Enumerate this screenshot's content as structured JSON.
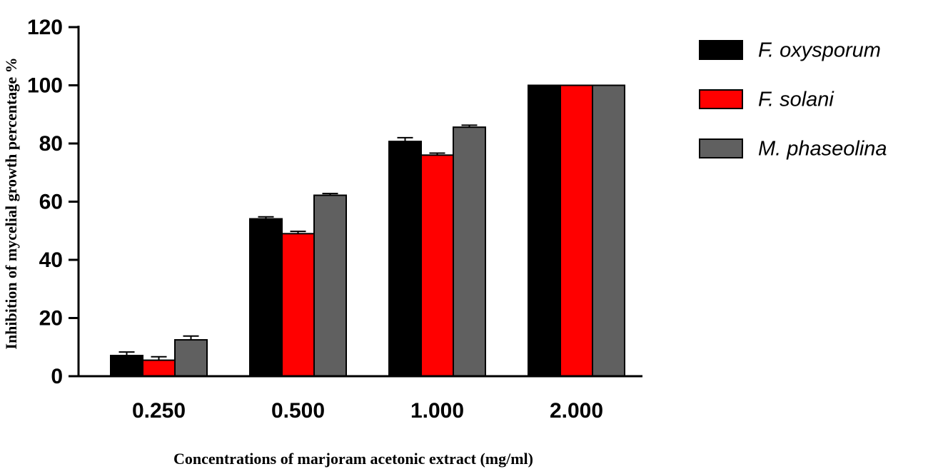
{
  "chart_data": {
    "type": "bar",
    "y_label": "Inhibition of mycelial growth percentage %",
    "x_label": "Concentrations of marjoram acetonic extract (mg/ml)",
    "categories": [
      "0.250",
      "0.500",
      "1.000",
      "2.000"
    ],
    "series": [
      {
        "name": "F. oxysporum",
        "color": "#000000",
        "values": [
          7.1,
          54.1,
          80.7,
          100
        ],
        "errors": [
          1.2,
          0.7,
          1.3,
          0
        ]
      },
      {
        "name": "F. solani",
        "color": "#ff0000",
        "values": [
          5.5,
          49,
          76,
          100
        ],
        "errors": [
          1.2,
          0.8,
          0.7,
          0
        ]
      },
      {
        "name": "M. phaseolina",
        "color": "#606060",
        "values": [
          12.5,
          62.2,
          85.6,
          100
        ],
        "errors": [
          1.3,
          0.6,
          0.7,
          0
        ]
      }
    ],
    "ylim": [
      0,
      120
    ],
    "yticks": [
      0,
      20,
      40,
      60,
      80,
      100,
      120
    ]
  }
}
